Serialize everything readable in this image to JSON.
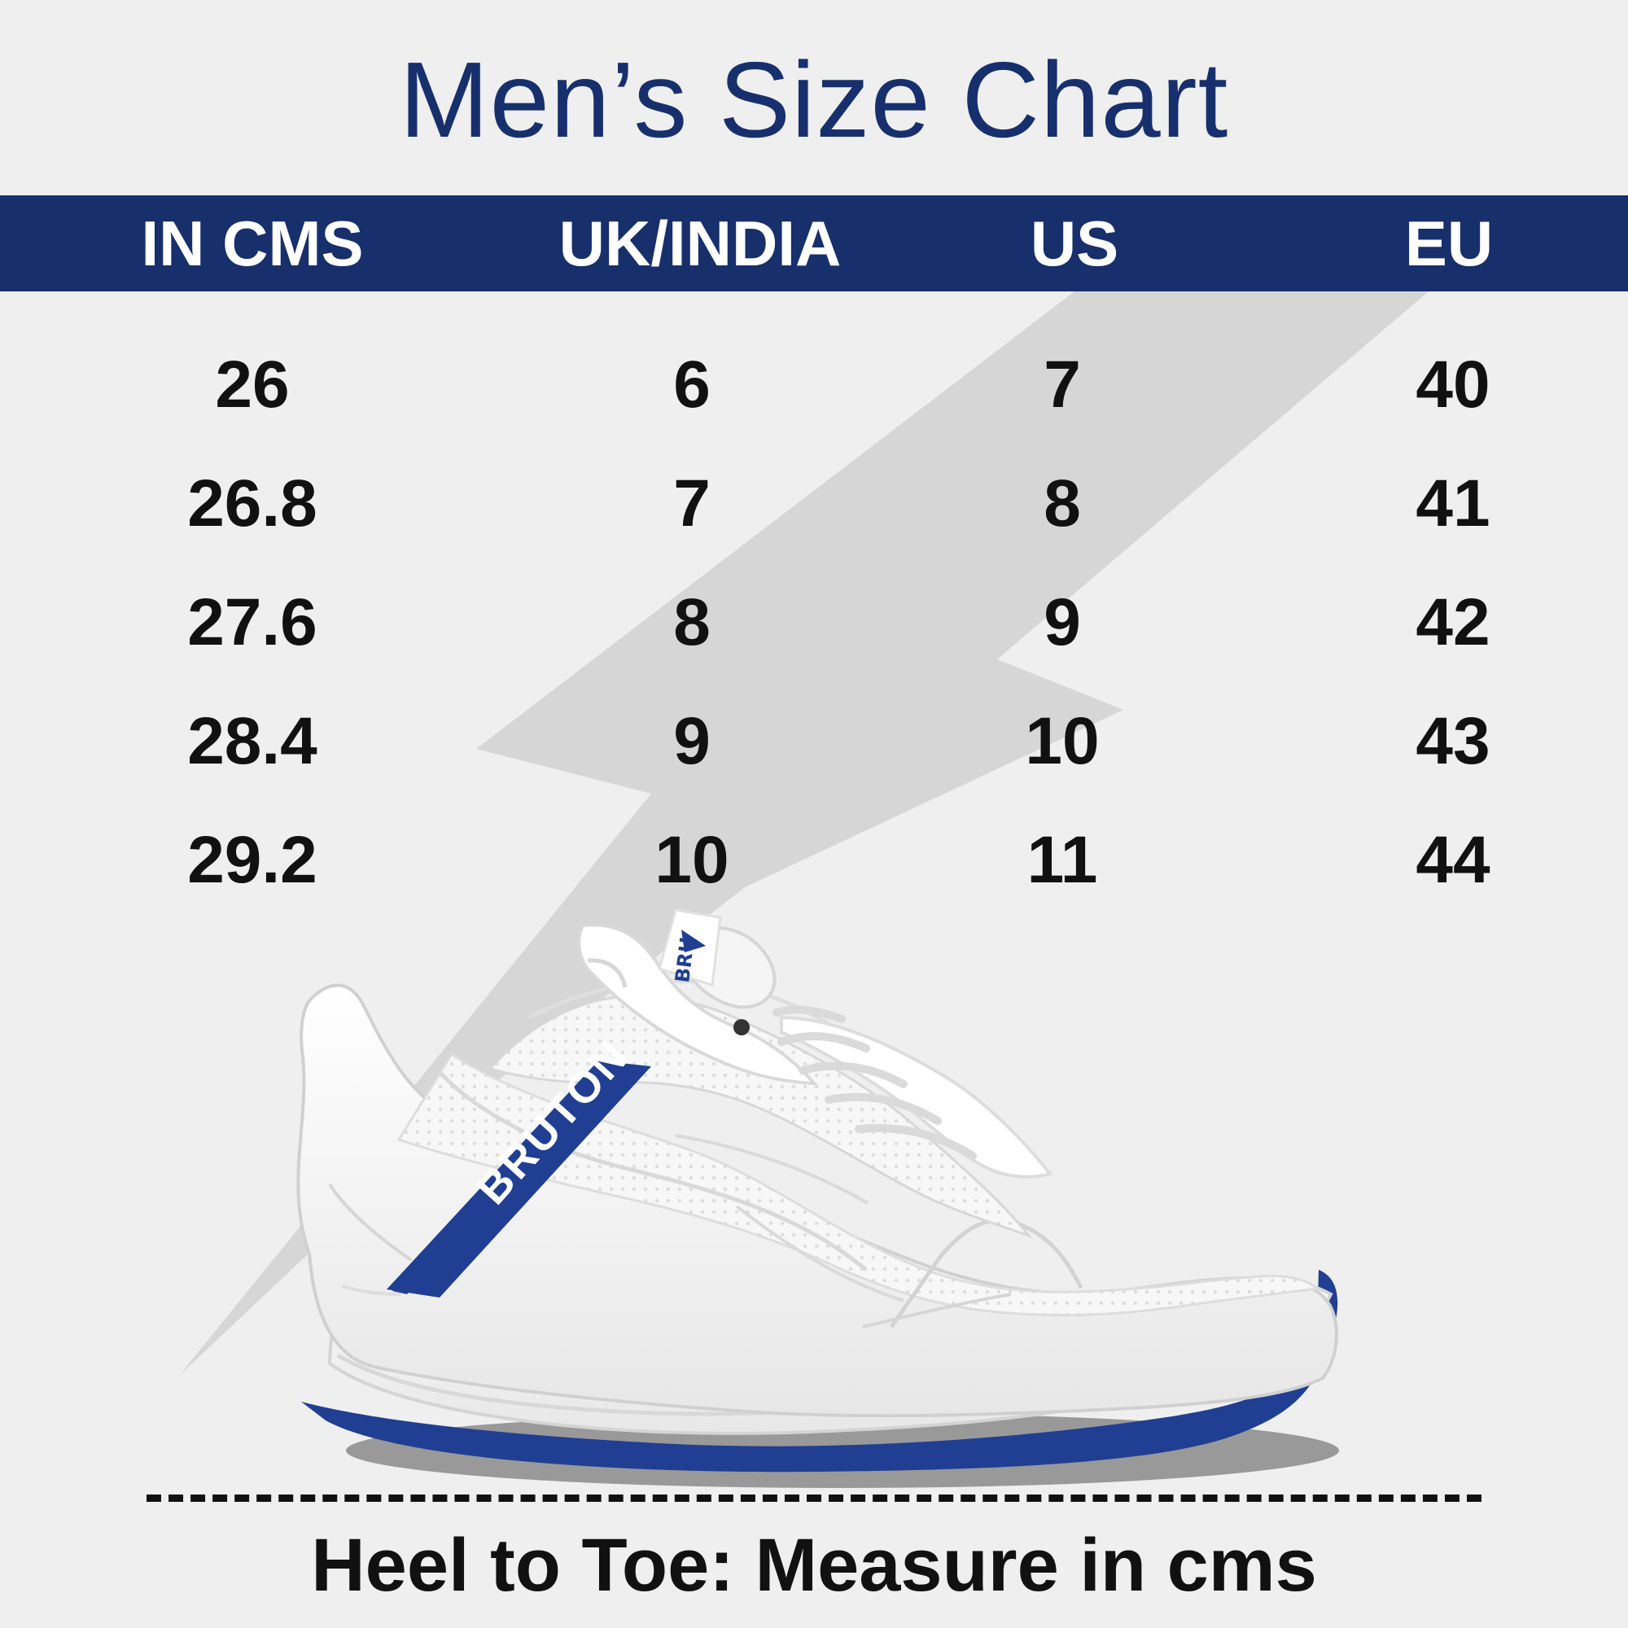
{
  "title": "Men’s Size Chart",
  "headers": {
    "cms": "IN CMS",
    "uk": "UK/INDIA",
    "us": "US",
    "eu": "EU"
  },
  "rows": [
    {
      "cms": "26",
      "uk": "6",
      "us": "7",
      "eu": "40"
    },
    {
      "cms": "26.8",
      "uk": "7",
      "us": "8",
      "eu": "41"
    },
    {
      "cms": "27.6",
      "uk": "8",
      "us": "9",
      "eu": "42"
    },
    {
      "cms": "28.4",
      "uk": "9",
      "us": "10",
      "eu": "43"
    },
    {
      "cms": "29.2",
      "uk": "10",
      "us": "11",
      "eu": "44"
    }
  ],
  "shoe": {
    "brand": "BRUTON",
    "tongue_label": "BRU",
    "icon": "sneaker-icon"
  },
  "background": {
    "icon": "lightning-bolt-icon"
  },
  "footer": {
    "text": "Heel to Toe: Measure in cms"
  },
  "colors": {
    "title": "#17306d",
    "header_band": "#172f6b",
    "background": "#efefef",
    "bolt": "#d6d6d6",
    "brand_blue": "#1f3d97",
    "text": "#111111"
  }
}
